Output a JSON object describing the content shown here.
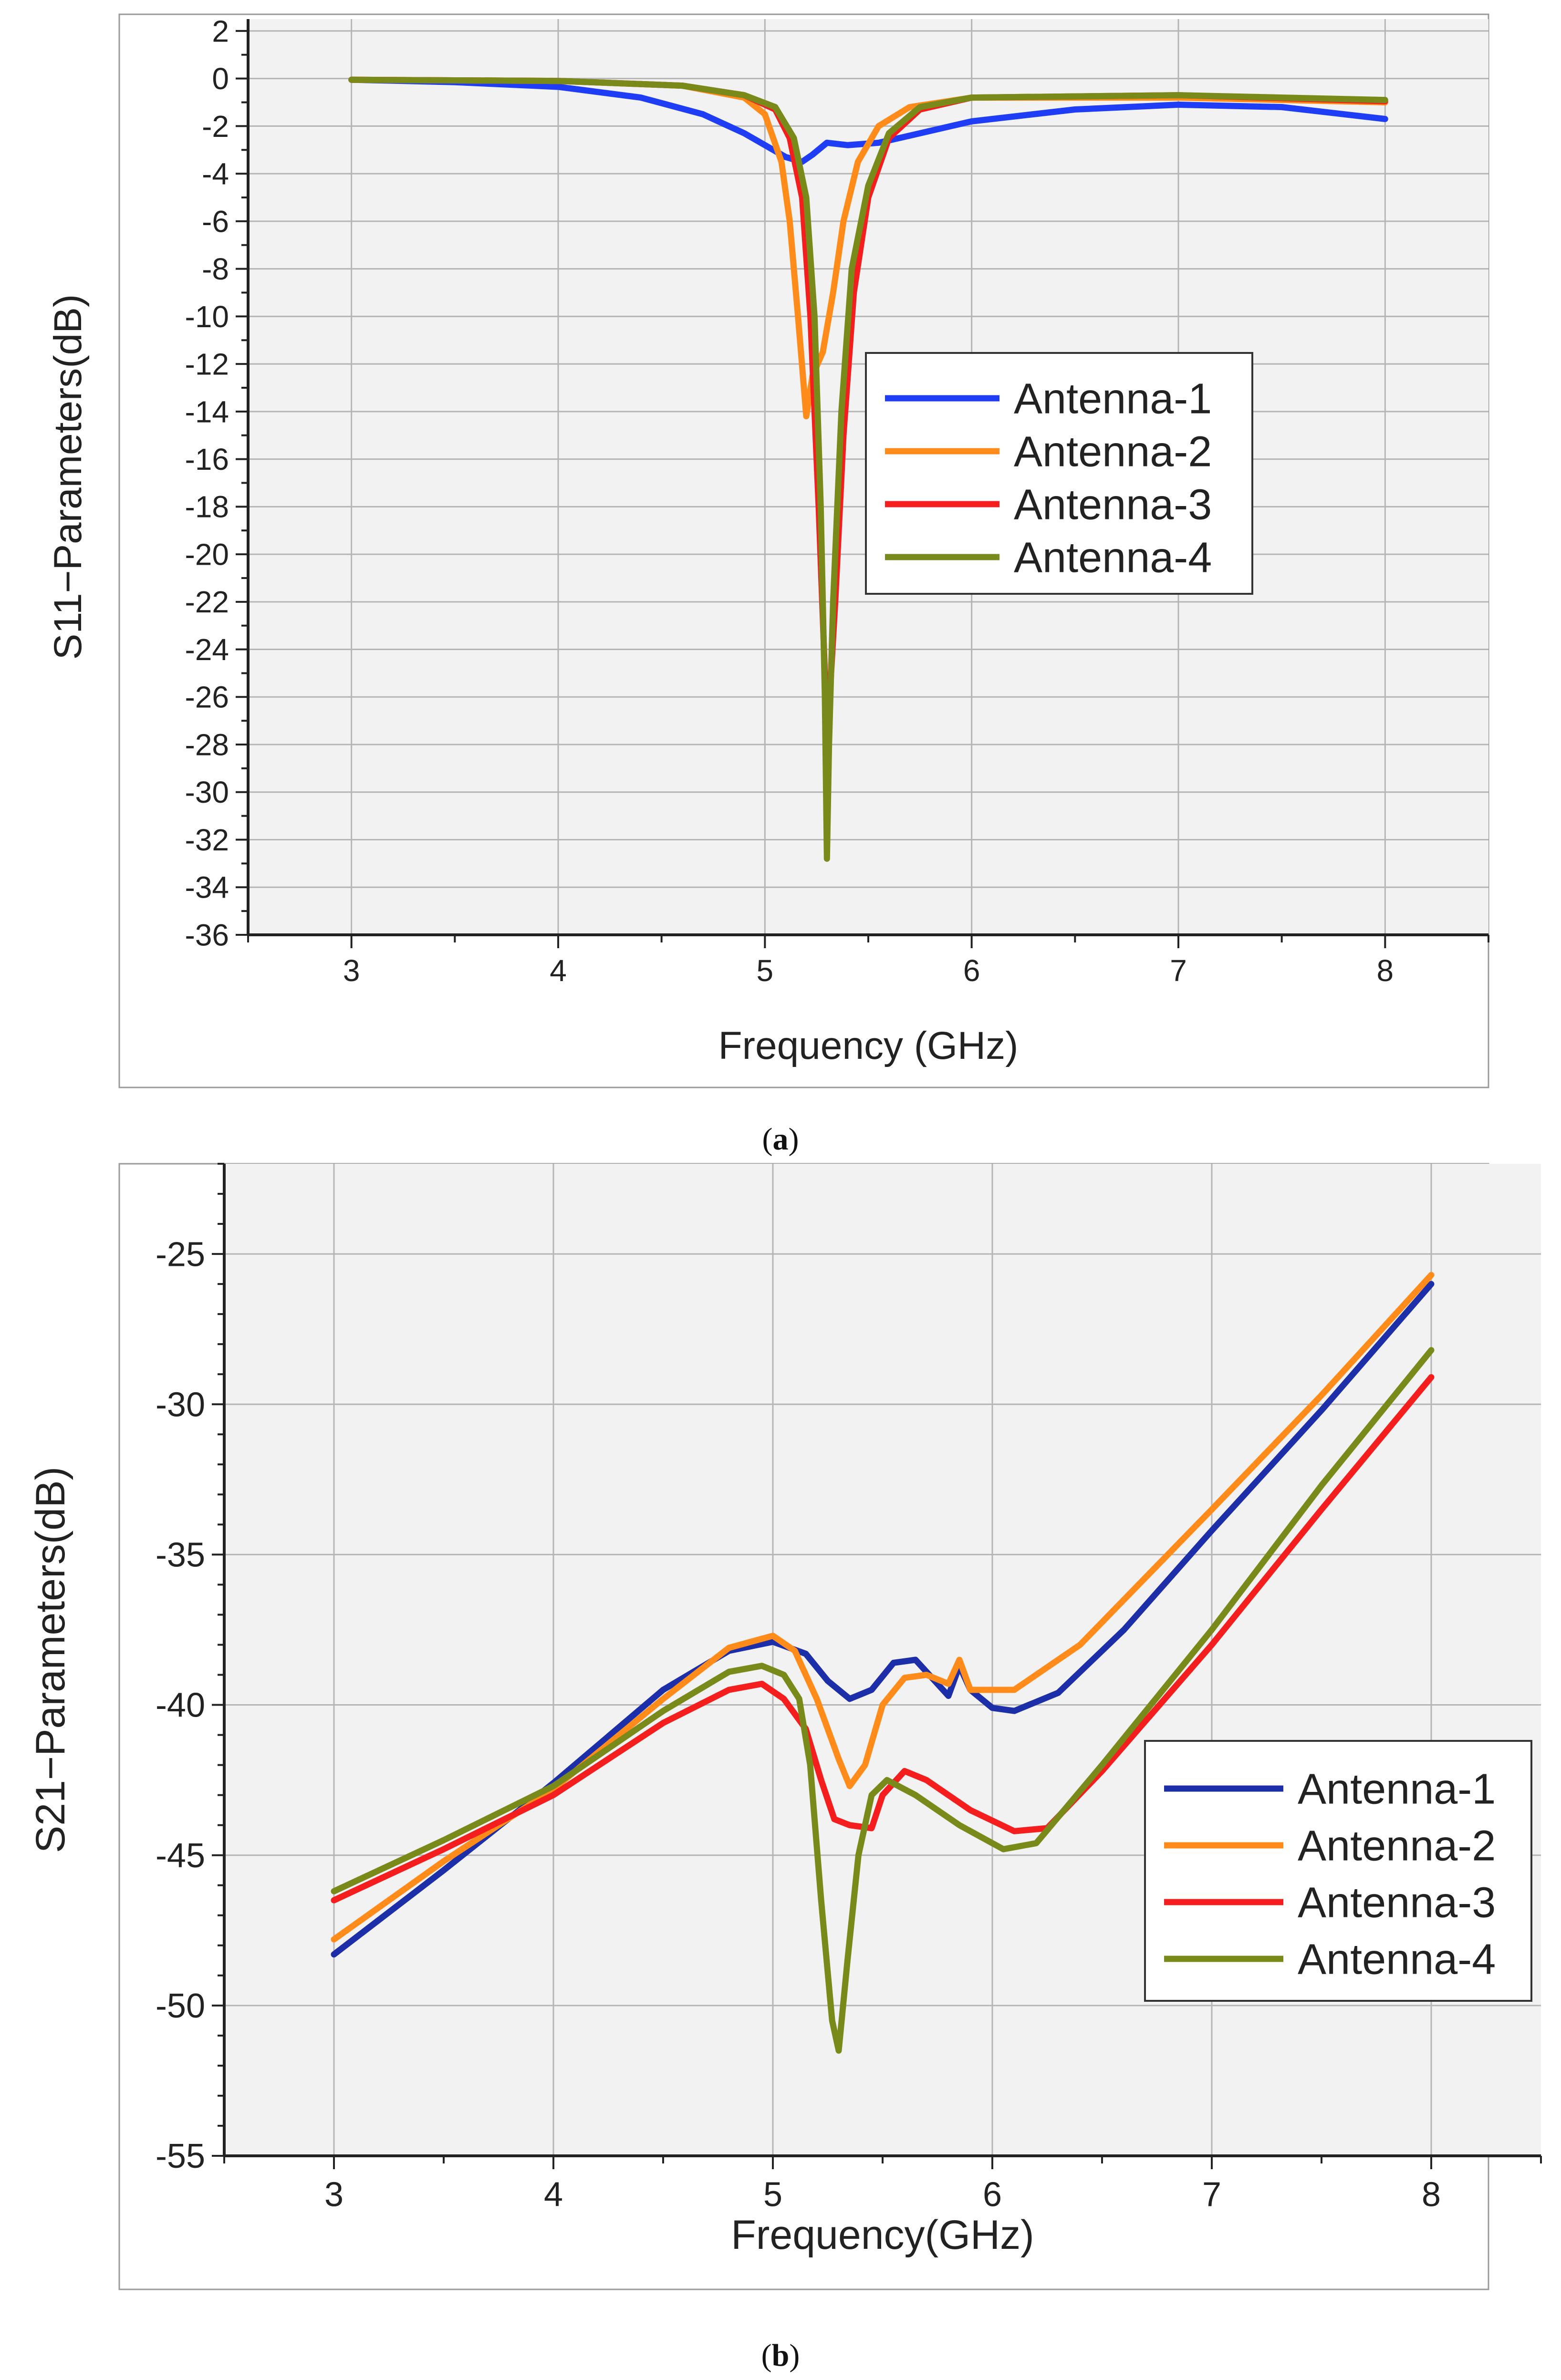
{
  "chart_data": [
    {
      "id": "a",
      "type": "line",
      "caption_pre": "(",
      "caption_letter": "a",
      "caption_post": ")",
      "xlabel": "Frequency (GHz)",
      "ylabel": "S11−Parameters(dB)",
      "xlim": [
        2.5,
        8.5
      ],
      "ylim": [
        -36,
        2.5
      ],
      "xticks": [
        3,
        4,
        5,
        6,
        7,
        8
      ],
      "xtick_labels": [
        "3",
        "4",
        "5",
        "6",
        "7",
        "8"
      ],
      "yticks": [
        2,
        0,
        -2,
        -4,
        -6,
        -8,
        -10,
        -12,
        -14,
        -16,
        -18,
        -20,
        -22,
        -24,
        -26,
        -28,
        -30,
        -32,
        -34,
        -36
      ],
      "ytick_labels": [
        "2",
        "0",
        "-2",
        "-4",
        "-6",
        "-8",
        "-10",
        "-12",
        "-14",
        "-16",
        "-18",
        "-20",
        "-22",
        "-24",
        "-26",
        "-28",
        "-30",
        "-32",
        "-34",
        "-36"
      ],
      "grid": true,
      "legend_position": "center-right",
      "series": [
        {
          "name": "Antenna-1",
          "color": "#1f3df5",
          "points": [
            [
              3,
              -0.05
            ],
            [
              3.5,
              -0.15
            ],
            [
              4,
              -0.35
            ],
            [
              4.4,
              -0.8
            ],
            [
              4.7,
              -1.5
            ],
            [
              4.9,
              -2.3
            ],
            [
              5.0,
              -2.8
            ],
            [
              5.1,
              -3.3
            ],
            [
              5.18,
              -3.5
            ],
            [
              5.23,
              -3.2
            ],
            [
              5.3,
              -2.7
            ],
            [
              5.4,
              -2.8
            ],
            [
              5.55,
              -2.7
            ],
            [
              5.7,
              -2.4
            ],
            [
              6.0,
              -1.8
            ],
            [
              6.5,
              -1.3
            ],
            [
              7.0,
              -1.1
            ],
            [
              7.5,
              -1.2
            ],
            [
              8.0,
              -1.7
            ]
          ]
        },
        {
          "name": "Antenna-2",
          "color": "#ff8c1a",
          "points": [
            [
              3,
              -0.05
            ],
            [
              4,
              -0.1
            ],
            [
              4.6,
              -0.3
            ],
            [
              4.9,
              -0.8
            ],
            [
              5.0,
              -1.5
            ],
            [
              5.08,
              -3.5
            ],
            [
              5.12,
              -6
            ],
            [
              5.16,
              -10
            ],
            [
              5.2,
              -14.2
            ],
            [
              5.23,
              -12.5
            ],
            [
              5.28,
              -11.5
            ],
            [
              5.33,
              -9
            ],
            [
              5.38,
              -6
            ],
            [
              5.45,
              -3.5
            ],
            [
              5.55,
              -2.0
            ],
            [
              5.7,
              -1.2
            ],
            [
              6.0,
              -0.8
            ],
            [
              7.0,
              -0.8
            ],
            [
              8.0,
              -1.0
            ]
          ]
        },
        {
          "name": "Antenna-3",
          "color": "#f51e1e",
          "points": [
            [
              3,
              -0.05
            ],
            [
              4,
              -0.1
            ],
            [
              4.6,
              -0.3
            ],
            [
              4.9,
              -0.7
            ],
            [
              5.05,
              -1.3
            ],
            [
              5.12,
              -2.5
            ],
            [
              5.18,
              -5
            ],
            [
              5.22,
              -10
            ],
            [
              5.26,
              -18
            ],
            [
              5.29,
              -25
            ],
            [
              5.31,
              -26.5
            ],
            [
              5.34,
              -22
            ],
            [
              5.38,
              -15
            ],
            [
              5.43,
              -9
            ],
            [
              5.5,
              -5
            ],
            [
              5.6,
              -2.5
            ],
            [
              5.75,
              -1.3
            ],
            [
              6.0,
              -0.8
            ],
            [
              7.0,
              -0.7
            ],
            [
              8.0,
              -0.95
            ]
          ]
        },
        {
          "name": "Antenna-4",
          "color": "#7a8a1a",
          "points": [
            [
              3,
              -0.05
            ],
            [
              4,
              -0.1
            ],
            [
              4.6,
              -0.3
            ],
            [
              4.9,
              -0.7
            ],
            [
              5.05,
              -1.2
            ],
            [
              5.14,
              -2.5
            ],
            [
              5.2,
              -5
            ],
            [
              5.24,
              -10
            ],
            [
              5.27,
              -18
            ],
            [
              5.29,
              -26
            ],
            [
              5.3,
              -32.8
            ],
            [
              5.31,
              -28
            ],
            [
              5.33,
              -22
            ],
            [
              5.37,
              -14
            ],
            [
              5.42,
              -8
            ],
            [
              5.5,
              -4.5
            ],
            [
              5.6,
              -2.3
            ],
            [
              5.75,
              -1.2
            ],
            [
              6.0,
              -0.8
            ],
            [
              7.0,
              -0.7
            ],
            [
              8.0,
              -0.9
            ]
          ]
        }
      ]
    },
    {
      "id": "b",
      "type": "line",
      "caption_pre": "(",
      "caption_letter": "b",
      "caption_post": ")",
      "xlabel": "Frequency(GHz)",
      "ylabel": "S21−Parameters(dB)",
      "xlim": [
        2.5,
        8.5
      ],
      "ylim": [
        -55,
        -22
      ],
      "xticks": [
        3,
        4,
        5,
        6,
        7,
        8
      ],
      "xtick_labels": [
        "3",
        "4",
        "5",
        "6",
        "7",
        "8"
      ],
      "yticks": [
        -25,
        -30,
        -35,
        -40,
        -45,
        -50,
        -55
      ],
      "ytick_labels": [
        "-25",
        "-30",
        "-35",
        "-40",
        "-45",
        "-50",
        "-55"
      ],
      "grid": true,
      "legend_position": "lower-right",
      "series": [
        {
          "name": "Antenna-1",
          "color": "#1c2fa8",
          "points": [
            [
              3,
              -48.3
            ],
            [
              3.5,
              -45.5
            ],
            [
              4,
              -42.6
            ],
            [
              4.5,
              -39.5
            ],
            [
              4.8,
              -38.2
            ],
            [
              5.0,
              -37.9
            ],
            [
              5.15,
              -38.3
            ],
            [
              5.25,
              -39.2
            ],
            [
              5.35,
              -39.8
            ],
            [
              5.45,
              -39.5
            ],
            [
              5.55,
              -38.6
            ],
            [
              5.65,
              -38.5
            ],
            [
              5.75,
              -39.3
            ],
            [
              5.8,
              -39.7
            ],
            [
              5.85,
              -38.7
            ],
            [
              5.9,
              -39.5
            ],
            [
              6.0,
              -40.1
            ],
            [
              6.1,
              -40.2
            ],
            [
              6.3,
              -39.6
            ],
            [
              6.6,
              -37.5
            ],
            [
              7.0,
              -34.2
            ],
            [
              7.5,
              -30.2
            ],
            [
              8.0,
              -26.0
            ]
          ]
        },
        {
          "name": "Antenna-2",
          "color": "#ff8c1a",
          "points": [
            [
              3,
              -47.8
            ],
            [
              3.5,
              -45.2
            ],
            [
              4,
              -42.8
            ],
            [
              4.5,
              -39.8
            ],
            [
              4.8,
              -38.1
            ],
            [
              5.0,
              -37.7
            ],
            [
              5.1,
              -38.2
            ],
            [
              5.2,
              -39.8
            ],
            [
              5.3,
              -41.8
            ],
            [
              5.35,
              -42.7
            ],
            [
              5.42,
              -42.0
            ],
            [
              5.5,
              -40.0
            ],
            [
              5.6,
              -39.1
            ],
            [
              5.7,
              -39.0
            ],
            [
              5.8,
              -39.3
            ],
            [
              5.85,
              -38.5
            ],
            [
              5.9,
              -39.5
            ],
            [
              6.0,
              -39.5
            ],
            [
              6.1,
              -39.5
            ],
            [
              6.4,
              -38.0
            ],
            [
              7.0,
              -33.5
            ],
            [
              7.5,
              -29.7
            ],
            [
              8.0,
              -25.7
            ]
          ]
        },
        {
          "name": "Antenna-3",
          "color": "#f51e1e",
          "points": [
            [
              3,
              -46.5
            ],
            [
              3.5,
              -44.8
            ],
            [
              4,
              -43.0
            ],
            [
              4.5,
              -40.6
            ],
            [
              4.8,
              -39.5
            ],
            [
              4.95,
              -39.3
            ],
            [
              5.05,
              -39.8
            ],
            [
              5.15,
              -40.8
            ],
            [
              5.22,
              -42.5
            ],
            [
              5.28,
              -43.8
            ],
            [
              5.35,
              -44.0
            ],
            [
              5.45,
              -44.1
            ],
            [
              5.5,
              -43.0
            ],
            [
              5.6,
              -42.2
            ],
            [
              5.7,
              -42.5
            ],
            [
              5.9,
              -43.5
            ],
            [
              6.1,
              -44.2
            ],
            [
              6.25,
              -44.1
            ],
            [
              6.5,
              -42.2
            ],
            [
              7.0,
              -38.0
            ],
            [
              7.5,
              -33.5
            ],
            [
              8.0,
              -29.1
            ]
          ]
        },
        {
          "name": "Antenna-4",
          "color": "#7a8a1a",
          "points": [
            [
              3,
              -46.2
            ],
            [
              3.5,
              -44.5
            ],
            [
              4,
              -42.7
            ],
            [
              4.5,
              -40.2
            ],
            [
              4.8,
              -38.9
            ],
            [
              4.95,
              -38.7
            ],
            [
              5.05,
              -39.0
            ],
            [
              5.12,
              -39.8
            ],
            [
              5.17,
              -42.0
            ],
            [
              5.22,
              -46.5
            ],
            [
              5.27,
              -50.5
            ],
            [
              5.3,
              -51.5
            ],
            [
              5.34,
              -48.5
            ],
            [
              5.39,
              -45.0
            ],
            [
              5.45,
              -43.0
            ],
            [
              5.52,
              -42.5
            ],
            [
              5.65,
              -43.0
            ],
            [
              5.85,
              -44.0
            ],
            [
              6.05,
              -44.8
            ],
            [
              6.2,
              -44.6
            ],
            [
              6.5,
              -42.0
            ],
            [
              7.0,
              -37.5
            ],
            [
              7.5,
              -32.7
            ],
            [
              8.0,
              -28.2
            ]
          ]
        }
      ]
    }
  ]
}
